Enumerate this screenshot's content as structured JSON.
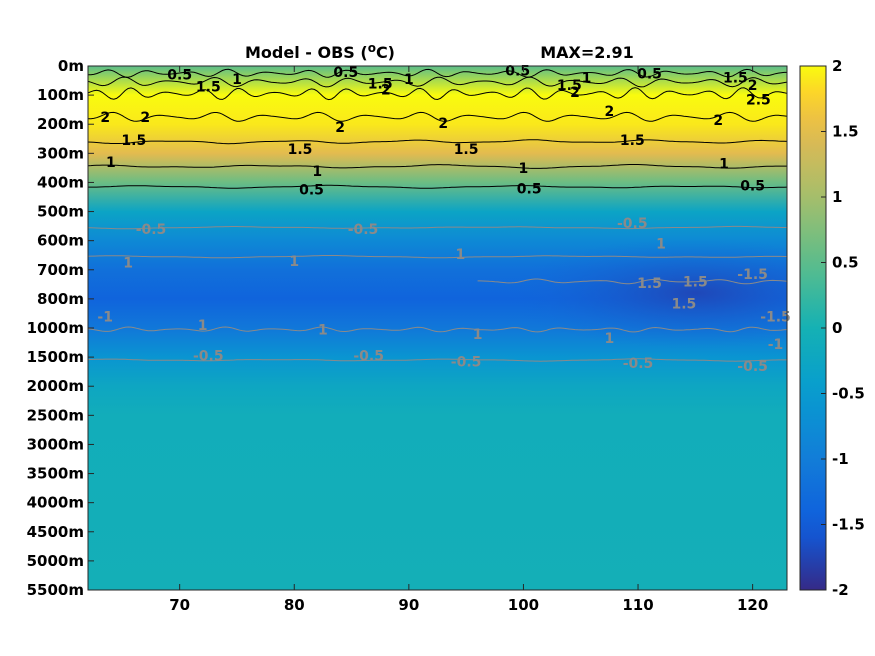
{
  "chart_data": {
    "type": "heatmap",
    "title": "Model - OBS (",
    "title_sup": "o",
    "title_unit": "C)",
    "max_label": "MAX=2.91",
    "xlim": [
      62,
      123
    ],
    "x_ticks": [
      70,
      80,
      90,
      100,
      110,
      120
    ],
    "y_tick_labels": [
      "0m",
      "100m",
      "200m",
      "300m",
      "400m",
      "500m",
      "600m",
      "700m",
      "800m",
      "1000m",
      "1500m",
      "2000m",
      "2500m",
      "3000m",
      "3500m",
      "4000m",
      "4500m",
      "5000m",
      "5500m"
    ],
    "colorbar": {
      "range": [
        -2,
        2
      ],
      "ticks": [
        "2",
        "1.5",
        "1",
        "0.5",
        "0",
        "-0.5",
        "-1",
        "-1.5",
        "-2"
      ],
      "colormap": "parula"
    },
    "field_profile": [
      {
        "depth": "0m",
        "value": 0.5
      },
      {
        "depth": "100m",
        "value": 2.0
      },
      {
        "depth": "200m",
        "value": 1.9
      },
      {
        "depth": "300m",
        "value": 1.5
      },
      {
        "depth": "400m",
        "value": 0.6
      },
      {
        "depth": "500m",
        "value": -0.3
      },
      {
        "depth": "600m",
        "value": -0.8
      },
      {
        "depth": "700m",
        "value": -1.2
      },
      {
        "depth": "800m",
        "value": -1.4
      },
      {
        "depth": "1000m",
        "value": -1.1
      },
      {
        "depth": "1500m",
        "value": -0.6
      },
      {
        "depth": "2000m",
        "value": -0.25
      },
      {
        "depth": "2500m",
        "value": -0.1
      },
      {
        "depth": "5500m",
        "value": -0.05
      }
    ],
    "contour_labels": [
      {
        "text": "0.5",
        "x": 70,
        "depth_idx": 0.3,
        "style": "dark"
      },
      {
        "text": "1.5",
        "x": 72.5,
        "depth_idx": 0.7,
        "style": "dark"
      },
      {
        "text": "1",
        "x": 75,
        "depth_idx": 0.45,
        "style": "dark"
      },
      {
        "text": "0.5",
        "x": 84.5,
        "depth_idx": 0.2,
        "style": "dark"
      },
      {
        "text": "1.5",
        "x": 87.5,
        "depth_idx": 0.6,
        "style": "dark"
      },
      {
        "text": "1",
        "x": 90,
        "depth_idx": 0.45,
        "style": "dark"
      },
      {
        "text": "2",
        "x": 88,
        "depth_idx": 0.8,
        "style": "dark"
      },
      {
        "text": "0.5",
        "x": 99.5,
        "depth_idx": 0.15,
        "style": "dark"
      },
      {
        "text": "1.5",
        "x": 104,
        "depth_idx": 0.65,
        "style": "dark"
      },
      {
        "text": "1",
        "x": 105.5,
        "depth_idx": 0.4,
        "style": "dark"
      },
      {
        "text": "2",
        "x": 104.5,
        "depth_idx": 0.9,
        "style": "dark"
      },
      {
        "text": "0.5",
        "x": 111,
        "depth_idx": 0.25,
        "style": "dark"
      },
      {
        "text": "1.5",
        "x": 118.5,
        "depth_idx": 0.4,
        "style": "dark"
      },
      {
        "text": "2",
        "x": 120,
        "depth_idx": 0.65,
        "style": "dark"
      },
      {
        "text": "2.5",
        "x": 120.5,
        "depth_idx": 1.15,
        "style": "dark"
      },
      {
        "text": "2",
        "x": 63.5,
        "depth_idx": 1.75,
        "style": "dark"
      },
      {
        "text": "2",
        "x": 67,
        "depth_idx": 1.75,
        "style": "dark"
      },
      {
        "text": "2",
        "x": 84,
        "depth_idx": 2.1,
        "style": "dark"
      },
      {
        "text": "2",
        "x": 93,
        "depth_idx": 1.95,
        "style": "dark"
      },
      {
        "text": "2",
        "x": 107.5,
        "depth_idx": 1.55,
        "style": "dark"
      },
      {
        "text": "2",
        "x": 117,
        "depth_idx": 1.85,
        "style": "dark"
      },
      {
        "text": "1.5",
        "x": 66,
        "depth_idx": 2.55,
        "style": "dark"
      },
      {
        "text": "1.5",
        "x": 80.5,
        "depth_idx": 2.85,
        "style": "dark"
      },
      {
        "text": "1.5",
        "x": 95,
        "depth_idx": 2.85,
        "style": "dark"
      },
      {
        "text": "1.5",
        "x": 109.5,
        "depth_idx": 2.55,
        "style": "dark"
      },
      {
        "text": "1",
        "x": 64,
        "depth_idx": 3.3,
        "style": "dark"
      },
      {
        "text": "1",
        "x": 82,
        "depth_idx": 3.6,
        "style": "dark"
      },
      {
        "text": "1",
        "x": 100,
        "depth_idx": 3.5,
        "style": "dark"
      },
      {
        "text": "1",
        "x": 117.5,
        "depth_idx": 3.35,
        "style": "dark"
      },
      {
        "text": "0.5",
        "x": 81.5,
        "depth_idx": 4.25,
        "style": "dark"
      },
      {
        "text": "0.5",
        "x": 100.5,
        "depth_idx": 4.2,
        "style": "dark"
      },
      {
        "text": "0.5",
        "x": 120,
        "depth_idx": 4.1,
        "style": "dark"
      },
      {
        "text": "-0.5",
        "x": 67.5,
        "depth_idx": 5.6,
        "style": "gray"
      },
      {
        "text": "-0.5",
        "x": 86,
        "depth_idx": 5.6,
        "style": "gray"
      },
      {
        "text": "-0.5",
        "x": 109.5,
        "depth_idx": 5.4,
        "style": "gray"
      },
      {
        "text": "1",
        "x": 112,
        "depth_idx": 6.1,
        "style": "gray"
      },
      {
        "text": "1",
        "x": 65.5,
        "depth_idx": 6.75,
        "style": "gray"
      },
      {
        "text": "1",
        "x": 80,
        "depth_idx": 6.7,
        "style": "gray"
      },
      {
        "text": "1",
        "x": 94.5,
        "depth_idx": 6.45,
        "style": "gray"
      },
      {
        "text": "1.5",
        "x": 111,
        "depth_idx": 7.45,
        "style": "gray"
      },
      {
        "text": "1.5",
        "x": 115,
        "depth_idx": 7.4,
        "style": "gray"
      },
      {
        "text": "-1.5",
        "x": 120,
        "depth_idx": 7.15,
        "style": "gray"
      },
      {
        "text": "1.5",
        "x": 114,
        "depth_idx": 8.15,
        "style": "gray"
      },
      {
        "text": "-1.5",
        "x": 122,
        "depth_idx": 8.6,
        "style": "gray"
      },
      {
        "text": "-1",
        "x": 63.5,
        "depth_idx": 8.6,
        "style": "gray"
      },
      {
        "text": "1",
        "x": 72,
        "depth_idx": 8.9,
        "style": "gray"
      },
      {
        "text": "1",
        "x": 82.5,
        "depth_idx": 9.05,
        "style": "gray"
      },
      {
        "text": "1",
        "x": 96,
        "depth_idx": 9.2,
        "style": "gray"
      },
      {
        "text": "1",
        "x": 107.5,
        "depth_idx": 9.35,
        "style": "gray"
      },
      {
        "text": "-1",
        "x": 122,
        "depth_idx": 9.55,
        "style": "gray"
      },
      {
        "text": "-0.5",
        "x": 72.5,
        "depth_idx": 9.95,
        "style": "gray"
      },
      {
        "text": "-0.5",
        "x": 86.5,
        "depth_idx": 9.95,
        "style": "gray"
      },
      {
        "text": "-0.5",
        "x": 95,
        "depth_idx": 10.15,
        "style": "gray"
      },
      {
        "text": "-0.5",
        "x": 110,
        "depth_idx": 10.2,
        "style": "gray"
      },
      {
        "text": "-0.5",
        "x": 120,
        "depth_idx": 10.3,
        "style": "gray"
      }
    ]
  }
}
